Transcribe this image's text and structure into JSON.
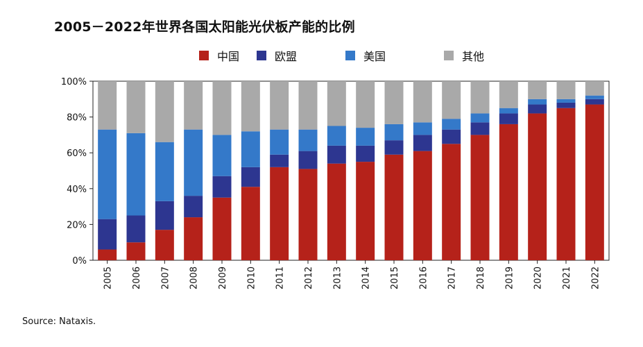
{
  "chart_data": {
    "type": "bar",
    "stacked": true,
    "title": "2005－2022年世界各国太阳能光伏板产能的比例",
    "xlabel": "",
    "ylabel": "",
    "ylim": [
      0,
      100
    ],
    "y_ticks": [
      "0%",
      "20%",
      "40%",
      "60%",
      "80%",
      "100%"
    ],
    "grid": false,
    "legend_position": "top",
    "categories": [
      "2005",
      "2006",
      "2007",
      "2008",
      "2009",
      "2010",
      "2011",
      "2012",
      "2013",
      "2014",
      "2015",
      "2016",
      "2017",
      "2018",
      "2019",
      "2020",
      "2021",
      "2022"
    ],
    "series": [
      {
        "name": "中国",
        "color": "#b5221a",
        "values": [
          6,
          10,
          17,
          24,
          35,
          41,
          52,
          51,
          54,
          55,
          59,
          61,
          65,
          70,
          76,
          82,
          85,
          87
        ]
      },
      {
        "name": "欧盟",
        "color": "#2d3690",
        "values": [
          17,
          15,
          16,
          12,
          12,
          11,
          7,
          10,
          10,
          9,
          8,
          9,
          8,
          7,
          6,
          5,
          3,
          3
        ]
      },
      {
        "name": "美国",
        "color": "#3479c9",
        "values": [
          50,
          46,
          33,
          37,
          23,
          20,
          14,
          12,
          11,
          10,
          9,
          7,
          6,
          5,
          3,
          3,
          2,
          2
        ]
      },
      {
        "name": "其他",
        "color": "#a9a9a9",
        "values": [
          27,
          29,
          34,
          27,
          30,
          28,
          27,
          27,
          25,
          26,
          24,
          23,
          21,
          18,
          15,
          10,
          10,
          8
        ]
      }
    ],
    "source": "Source: Nataxis."
  }
}
